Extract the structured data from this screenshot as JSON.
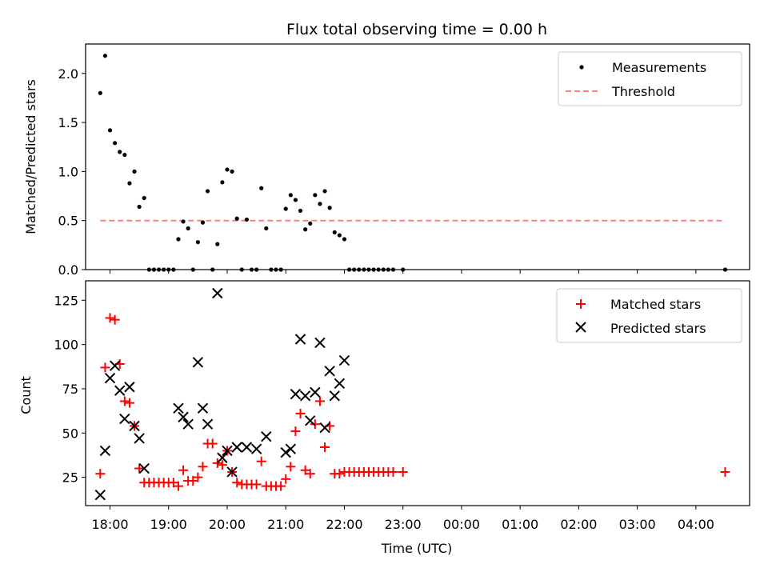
{
  "chart_data": [
    {
      "type": "scatter",
      "title": "Flux total observing time = 0.00 h",
      "xlabel": "",
      "ylabel": "Matched/Predicted stars",
      "xlim": [
        "17:35",
        "04:55"
      ],
      "ylim": [
        0,
        2.3
      ],
      "yticks": [
        0.0,
        0.5,
        1.0,
        1.5,
        2.0
      ],
      "ytick_labels": [
        "0.0",
        "0.5",
        "1.0",
        "1.5",
        "2.0"
      ],
      "legend": {
        "position": "top-right",
        "entries": [
          "Measurements",
          "Threshold"
        ]
      },
      "colors": {
        "measurements": "#000000",
        "threshold": "#ff7f7f"
      },
      "series": [
        {
          "name": "Measurements",
          "marker": "dot",
          "x": [
            "17:50",
            "17:55",
            "18:00",
            "18:05",
            "18:10",
            "18:15",
            "18:20",
            "18:25",
            "18:30",
            "18:35",
            "18:40",
            "18:45",
            "18:50",
            "18:55",
            "19:00",
            "19:05",
            "19:10",
            "19:15",
            "19:20",
            "19:25",
            "19:30",
            "19:35",
            "19:40",
            "19:45",
            "19:50",
            "19:55",
            "20:00",
            "20:05",
            "20:10",
            "20:15",
            "20:20",
            "20:25",
            "20:30",
            "20:35",
            "20:40",
            "20:45",
            "20:50",
            "20:55",
            "21:00",
            "21:05",
            "21:10",
            "21:15",
            "21:20",
            "21:25",
            "21:30",
            "21:35",
            "21:40",
            "21:45",
            "21:50",
            "21:55",
            "22:00",
            "22:05",
            "22:10",
            "22:15",
            "22:20",
            "22:25",
            "22:30",
            "22:35",
            "22:40",
            "22:45",
            "22:50",
            "23:00",
            "04:30"
          ],
          "y": [
            1.8,
            2.18,
            1.42,
            1.29,
            1.2,
            1.17,
            0.88,
            1.0,
            0.64,
            0.73,
            0.0,
            0.0,
            0.0,
            0.0,
            0.0,
            0.0,
            0.31,
            0.49,
            0.42,
            0.0,
            0.28,
            0.48,
            0.8,
            0.0,
            0.26,
            0.89,
            1.02,
            1.0,
            0.52,
            0.0,
            0.51,
            0.0,
            0.0,
            0.83,
            0.42,
            0.0,
            0.0,
            0.0,
            0.62,
            0.76,
            0.71,
            0.6,
            0.41,
            0.47,
            0.76,
            0.67,
            0.8,
            0.63,
            0.38,
            0.35,
            0.31,
            0.0,
            0.0,
            0.0,
            0.0,
            0.0,
            0.0,
            0.0,
            0.0,
            0.0,
            0.0,
            0.0,
            0.0
          ]
        },
        {
          "name": "Threshold",
          "marker": "dashed-line",
          "x": [
            "17:50",
            "04:30"
          ],
          "y": [
            0.5,
            0.5
          ]
        }
      ]
    },
    {
      "type": "scatter",
      "title": "",
      "xlabel": "Time (UTC)",
      "ylabel": "Count",
      "xlim": [
        "17:35",
        "04:55"
      ],
      "ylim": [
        9,
        136
      ],
      "yticks": [
        25,
        50,
        75,
        100,
        125
      ],
      "ytick_labels": [
        "25",
        "50",
        "75",
        "100",
        "125"
      ],
      "xticks": [
        "18:00",
        "19:00",
        "20:00",
        "21:00",
        "22:00",
        "23:00",
        "00:00",
        "01:00",
        "02:00",
        "03:00",
        "04:00"
      ],
      "legend": {
        "position": "top-right",
        "entries": [
          "Matched stars",
          "Predicted stars"
        ]
      },
      "colors": {
        "matched": "#ff0000",
        "predicted": "#000000"
      },
      "series": [
        {
          "name": "Matched stars",
          "marker": "plus",
          "x": [
            "17:50",
            "17:55",
            "18:00",
            "18:05",
            "18:10",
            "18:15",
            "18:20",
            "18:25",
            "18:30",
            "18:35",
            "18:40",
            "18:45",
            "18:50",
            "18:55",
            "19:00",
            "19:05",
            "19:10",
            "19:15",
            "19:20",
            "19:25",
            "19:30",
            "19:35",
            "19:40",
            "19:45",
            "19:50",
            "19:55",
            "20:00",
            "20:05",
            "20:10",
            "20:15",
            "20:20",
            "20:25",
            "20:30",
            "20:35",
            "20:40",
            "20:45",
            "20:50",
            "20:55",
            "21:00",
            "21:05",
            "21:10",
            "21:15",
            "21:20",
            "21:25",
            "21:30",
            "21:35",
            "21:40",
            "21:45",
            "21:50",
            "21:55",
            "22:00",
            "22:05",
            "22:10",
            "22:15",
            "22:20",
            "22:25",
            "22:30",
            "22:35",
            "22:40",
            "22:45",
            "22:50",
            "23:00",
            "04:30"
          ],
          "y": [
            27,
            87,
            115,
            114,
            89,
            68,
            67,
            54,
            30,
            22,
            22,
            22,
            22,
            22,
            22,
            22,
            20,
            29,
            23,
            23,
            25,
            31,
            44,
            44,
            33,
            32,
            40,
            28,
            22,
            21,
            21,
            21,
            21,
            34,
            20,
            20,
            20,
            20,
            24,
            31,
            51,
            61,
            29,
            27,
            55,
            68,
            42,
            54,
            27,
            27,
            28,
            28,
            28,
            28,
            28,
            28,
            28,
            28,
            28,
            28,
            28,
            28,
            28
          ]
        },
        {
          "name": "Predicted stars",
          "marker": "x",
          "x": [
            "17:50",
            "17:55",
            "18:00",
            "18:05",
            "18:10",
            "18:15",
            "18:20",
            "18:25",
            "18:30",
            "18:35",
            "19:10",
            "19:15",
            "19:20",
            "19:30",
            "19:35",
            "19:40",
            "19:50",
            "19:55",
            "20:00",
            "20:05",
            "20:10",
            "20:20",
            "20:30",
            "20:40",
            "21:00",
            "21:05",
            "21:10",
            "21:15",
            "21:20",
            "21:25",
            "21:30",
            "21:35",
            "21:40",
            "21:45",
            "21:50",
            "21:55",
            "22:00"
          ],
          "y": [
            15,
            40,
            81,
            88,
            74,
            58,
            76,
            54,
            47,
            30,
            64,
            59,
            55,
            90,
            64,
            55,
            129,
            36,
            40,
            28,
            42,
            42,
            41,
            48,
            39,
            41,
            72,
            103,
            71,
            57,
            73,
            101,
            53,
            85,
            71,
            78,
            91
          ]
        }
      ]
    }
  ]
}
